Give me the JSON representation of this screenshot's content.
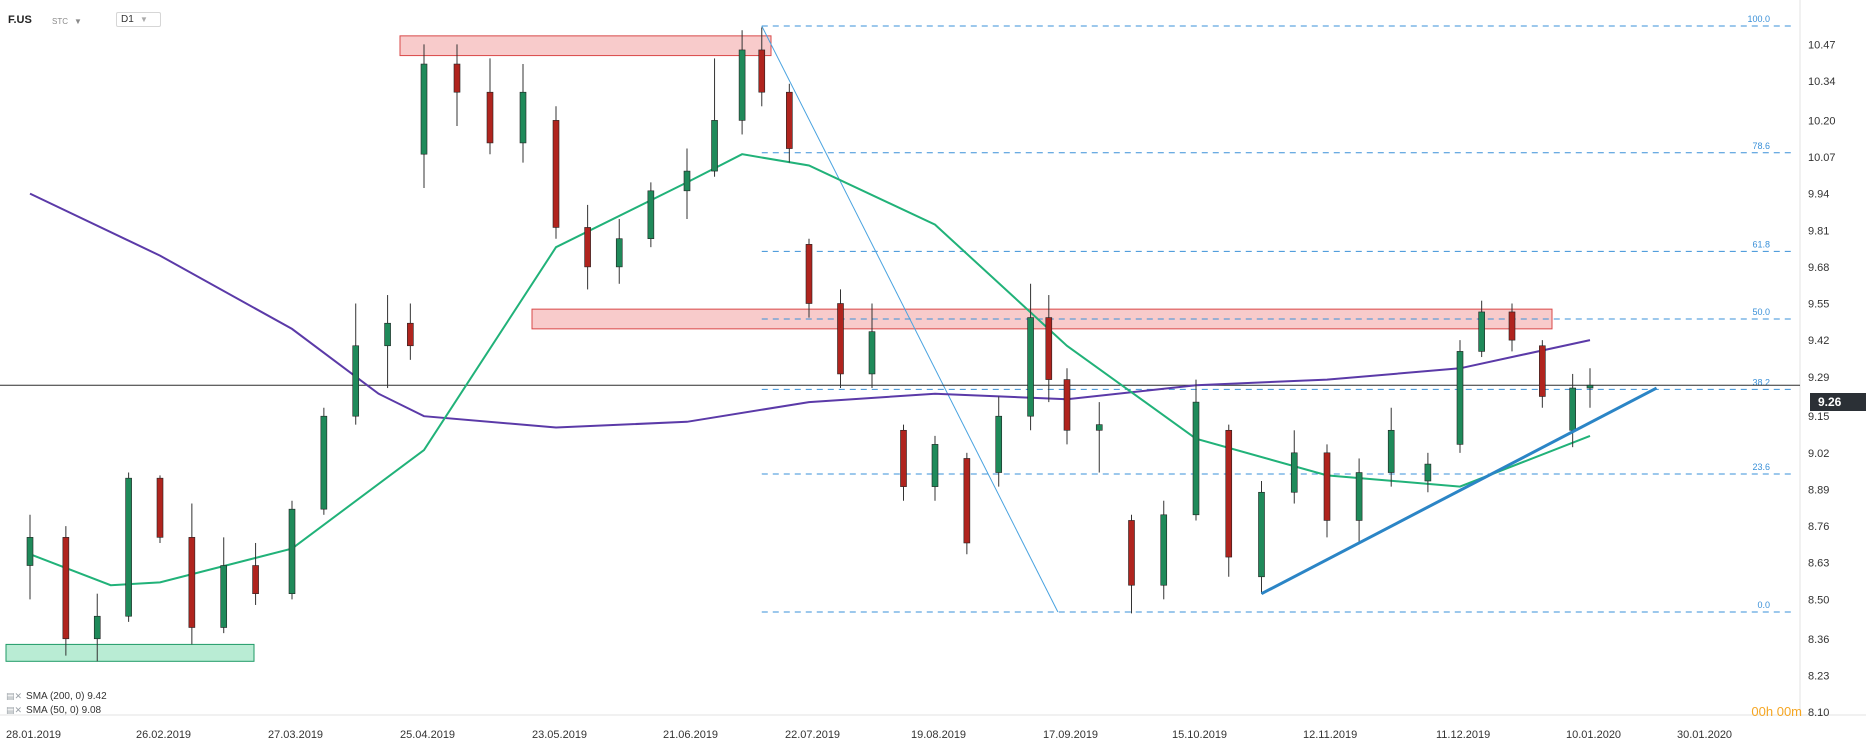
{
  "header": {
    "symbol": "F.US",
    "source": "STC",
    "timeframe": "D1",
    "source_caret_icon": "caret-down-icon",
    "timeframe_caret_icon": "caret-down-icon"
  },
  "legend": [
    {
      "label": "SMA (200, 0)",
      "value": "9.42",
      "icon": "indicator-settings-icon"
    },
    {
      "label": "SMA (50, 0)",
      "value": "9.08",
      "icon": "indicator-settings-icon"
    }
  ],
  "timer": "00h 00m",
  "current_price": "9.26",
  "chart_data": {
    "type": "candlestick",
    "title": "",
    "ylim": [
      8.1,
      10.56
    ],
    "y_ticks": [
      10.47,
      10.34,
      10.2,
      10.07,
      9.94,
      9.81,
      9.68,
      9.55,
      9.42,
      9.29,
      9.15,
      9.02,
      8.89,
      8.76,
      8.63,
      8.5,
      8.36,
      8.23,
      8.1
    ],
    "x_ticks": [
      "28.01.2019",
      "26.02.2019",
      "27.03.2019",
      "25.04.2019",
      "23.05.2019",
      "21.06.2019",
      "22.07.2019",
      "19.08.2019",
      "17.09.2019",
      "15.10.2019",
      "12.11.2019",
      "11.12.2019",
      "10.01.2020",
      "30.01.2020"
    ],
    "colors": {
      "up": "#1f8a5a",
      "down": "#b0241e",
      "sma200": "#5b3aa8",
      "sma50": "#21b279",
      "trend": "#2b85c6",
      "fib": "#3a90d8",
      "zone_red": "#f2a0a0",
      "zone_green": "#7fdcb0",
      "price_line": "#2f2f2f"
    },
    "fibonacci": [
      {
        "level": "100.0",
        "price": 10.535
      },
      {
        "level": "78.6",
        "price": 10.085
      },
      {
        "level": "61.8",
        "price": 9.735
      },
      {
        "level": "50.0",
        "price": 9.495
      },
      {
        "level": "38.2",
        "price": 9.245
      },
      {
        "level": "23.6",
        "price": 8.945
      },
      {
        "level": "0.0",
        "price": 8.455
      }
    ],
    "zones": [
      {
        "name": "resistance-zone-top",
        "from": "25.04.2019",
        "to": "22.07.2019",
        "y_low": 10.43,
        "y_high": 10.5,
        "color": "red"
      },
      {
        "name": "resistance-zone-middle",
        "from": "23.05.2019",
        "to": "10.01.2020",
        "y_low": 9.46,
        "y_high": 9.53,
        "color": "red"
      },
      {
        "name": "support-zone",
        "from": "28.01.2019",
        "to": "27.03.2019",
        "y_low": 8.28,
        "y_high": 8.34,
        "color": "green"
      }
    ],
    "current_price": 9.26,
    "trendline": {
      "from": {
        "x": "29.10.2019",
        "y": 8.52
      },
      "to": {
        "x": "22.01.2020",
        "y": 9.25
      }
    },
    "fib_diagonal": {
      "from": {
        "x": "10.07.2019",
        "y": 10.535
      },
      "to": {
        "x": "15.09.2019",
        "y": 8.455
      }
    },
    "sma200": [
      {
        "x": "28.01.2019",
        "y": 9.94
      },
      {
        "x": "26.02.2019",
        "y": 9.72
      },
      {
        "x": "27.03.2019",
        "y": 9.46
      },
      {
        "x": "15.04.2019",
        "y": 9.23
      },
      {
        "x": "25.04.2019",
        "y": 9.15
      },
      {
        "x": "23.05.2019",
        "y": 9.11
      },
      {
        "x": "21.06.2019",
        "y": 9.13
      },
      {
        "x": "22.07.2019",
        "y": 9.2
      },
      {
        "x": "19.08.2019",
        "y": 9.23
      },
      {
        "x": "17.09.2019",
        "y": 9.21
      },
      {
        "x": "15.10.2019",
        "y": 9.26
      },
      {
        "x": "12.11.2019",
        "y": 9.28
      },
      {
        "x": "11.12.2019",
        "y": 9.32
      },
      {
        "x": "10.01.2020",
        "y": 9.42
      }
    ],
    "sma50": [
      {
        "x": "28.01.2019",
        "y": 8.66
      },
      {
        "x": "15.02.2019",
        "y": 8.55
      },
      {
        "x": "26.02.2019",
        "y": 8.56
      },
      {
        "x": "27.03.2019",
        "y": 8.68
      },
      {
        "x": "25.04.2019",
        "y": 9.03
      },
      {
        "x": "23.05.2019",
        "y": 9.75
      },
      {
        "x": "21.06.2019",
        "y": 9.98
      },
      {
        "x": "05.07.2019",
        "y": 10.08
      },
      {
        "x": "22.07.2019",
        "y": 10.04
      },
      {
        "x": "19.08.2019",
        "y": 9.83
      },
      {
        "x": "17.09.2019",
        "y": 9.4
      },
      {
        "x": "15.10.2019",
        "y": 9.07
      },
      {
        "x": "12.11.2019",
        "y": 8.94
      },
      {
        "x": "11.12.2019",
        "y": 8.9
      },
      {
        "x": "10.01.2020",
        "y": 9.08
      }
    ],
    "candles": [
      {
        "x": "28.01.2019",
        "o": 8.62,
        "h": 8.8,
        "l": 8.5,
        "c": 8.72
      },
      {
        "x": "05.02.2019",
        "o": 8.72,
        "h": 8.76,
        "l": 8.3,
        "c": 8.36
      },
      {
        "x": "12.02.2019",
        "o": 8.36,
        "h": 8.52,
        "l": 8.28,
        "c": 8.44
      },
      {
        "x": "19.02.2019",
        "o": 8.44,
        "h": 8.95,
        "l": 8.42,
        "c": 8.93
      },
      {
        "x": "26.02.2019",
        "o": 8.93,
        "h": 8.94,
        "l": 8.7,
        "c": 8.72
      },
      {
        "x": "05.03.2019",
        "o": 8.72,
        "h": 8.84,
        "l": 8.34,
        "c": 8.4
      },
      {
        "x": "12.03.2019",
        "o": 8.4,
        "h": 8.72,
        "l": 8.38,
        "c": 8.62
      },
      {
        "x": "19.03.2019",
        "o": 8.62,
        "h": 8.7,
        "l": 8.48,
        "c": 8.52
      },
      {
        "x": "27.03.2019",
        "o": 8.52,
        "h": 8.85,
        "l": 8.5,
        "c": 8.82
      },
      {
        "x": "03.04.2019",
        "o": 8.82,
        "h": 9.18,
        "l": 8.8,
        "c": 9.15
      },
      {
        "x": "10.04.2019",
        "o": 9.15,
        "h": 9.55,
        "l": 9.12,
        "c": 9.4
      },
      {
        "x": "17.04.2019",
        "o": 9.4,
        "h": 9.58,
        "l": 9.25,
        "c": 9.48
      },
      {
        "x": "22.04.2019",
        "o": 9.48,
        "h": 9.55,
        "l": 9.35,
        "c": 9.4
      },
      {
        "x": "25.04.2019",
        "o": 10.08,
        "h": 10.47,
        "l": 9.96,
        "c": 10.4
      },
      {
        "x": "02.05.2019",
        "o": 10.4,
        "h": 10.47,
        "l": 10.18,
        "c": 10.3
      },
      {
        "x": "09.05.2019",
        "o": 10.3,
        "h": 10.42,
        "l": 10.08,
        "c": 10.12
      },
      {
        "x": "16.05.2019",
        "o": 10.12,
        "h": 10.4,
        "l": 10.05,
        "c": 10.3
      },
      {
        "x": "23.05.2019",
        "o": 10.2,
        "h": 10.25,
        "l": 9.78,
        "c": 9.82
      },
      {
        "x": "30.05.2019",
        "o": 9.82,
        "h": 9.9,
        "l": 9.6,
        "c": 9.68
      },
      {
        "x": "06.06.2019",
        "o": 9.68,
        "h": 9.85,
        "l": 9.62,
        "c": 9.78
      },
      {
        "x": "13.06.2019",
        "o": 9.78,
        "h": 9.98,
        "l": 9.75,
        "c": 9.95
      },
      {
        "x": "21.06.2019",
        "o": 9.95,
        "h": 10.1,
        "l": 9.85,
        "c": 10.02
      },
      {
        "x": "28.06.2019",
        "o": 10.02,
        "h": 10.42,
        "l": 10.0,
        "c": 10.2
      },
      {
        "x": "05.07.2019",
        "o": 10.2,
        "h": 10.52,
        "l": 10.15,
        "c": 10.45
      },
      {
        "x": "10.07.2019",
        "o": 10.45,
        "h": 10.53,
        "l": 10.25,
        "c": 10.3
      },
      {
        "x": "17.07.2019",
        "o": 10.3,
        "h": 10.33,
        "l": 10.05,
        "c": 10.1
      },
      {
        "x": "22.07.2019",
        "o": 9.76,
        "h": 9.78,
        "l": 9.5,
        "c": 9.55
      },
      {
        "x": "29.07.2019",
        "o": 9.55,
        "h": 9.6,
        "l": 9.25,
        "c": 9.3
      },
      {
        "x": "05.08.2019",
        "o": 9.3,
        "h": 9.55,
        "l": 9.25,
        "c": 9.45
      },
      {
        "x": "12.08.2019",
        "o": 9.1,
        "h": 9.12,
        "l": 8.85,
        "c": 8.9
      },
      {
        "x": "19.08.2019",
        "o": 8.9,
        "h": 9.08,
        "l": 8.85,
        "c": 9.05
      },
      {
        "x": "26.08.2019",
        "o": 9.0,
        "h": 9.02,
        "l": 8.66,
        "c": 8.7
      },
      {
        "x": "02.09.2019",
        "o": 8.95,
        "h": 9.22,
        "l": 8.9,
        "c": 9.15
      },
      {
        "x": "09.09.2019",
        "o": 9.15,
        "h": 9.62,
        "l": 9.1,
        "c": 9.5
      },
      {
        "x": "13.09.2019",
        "o": 9.5,
        "h": 9.58,
        "l": 9.2,
        "c": 9.28
      },
      {
        "x": "17.09.2019",
        "o": 9.28,
        "h": 9.32,
        "l": 9.05,
        "c": 9.1
      },
      {
        "x": "24.09.2019",
        "o": 9.1,
        "h": 9.2,
        "l": 8.95,
        "c": 9.12
      },
      {
        "x": "01.10.2019",
        "o": 8.78,
        "h": 8.8,
        "l": 8.45,
        "c": 8.55
      },
      {
        "x": "08.10.2019",
        "o": 8.55,
        "h": 8.85,
        "l": 8.5,
        "c": 8.8
      },
      {
        "x": "15.10.2019",
        "o": 8.8,
        "h": 9.28,
        "l": 8.78,
        "c": 9.2
      },
      {
        "x": "22.10.2019",
        "o": 9.1,
        "h": 9.12,
        "l": 8.58,
        "c": 8.65
      },
      {
        "x": "29.10.2019",
        "o": 8.58,
        "h": 8.92,
        "l": 8.52,
        "c": 8.88
      },
      {
        "x": "05.11.2019",
        "o": 8.88,
        "h": 9.1,
        "l": 8.84,
        "c": 9.02
      },
      {
        "x": "12.11.2019",
        "o": 9.02,
        "h": 9.05,
        "l": 8.72,
        "c": 8.78
      },
      {
        "x": "19.11.2019",
        "o": 8.78,
        "h": 9.0,
        "l": 8.7,
        "c": 8.95
      },
      {
        "x": "26.11.2019",
        "o": 8.95,
        "h": 9.18,
        "l": 8.9,
        "c": 9.1
      },
      {
        "x": "04.12.2019",
        "o": 8.92,
        "h": 9.02,
        "l": 8.88,
        "c": 8.98
      },
      {
        "x": "11.12.2019",
        "o": 9.05,
        "h": 9.42,
        "l": 9.02,
        "c": 9.38
      },
      {
        "x": "16.12.2019",
        "o": 9.38,
        "h": 9.56,
        "l": 9.36,
        "c": 9.52
      },
      {
        "x": "23.12.2019",
        "o": 9.52,
        "h": 9.55,
        "l": 9.38,
        "c": 9.42
      },
      {
        "x": "30.12.2019",
        "o": 9.4,
        "h": 9.42,
        "l": 9.18,
        "c": 9.22
      },
      {
        "x": "06.01.2020",
        "o": 9.1,
        "h": 9.3,
        "l": 9.04,
        "c": 9.25
      },
      {
        "x": "10.01.2020",
        "o": 9.25,
        "h": 9.32,
        "l": 9.18,
        "c": 9.26
      }
    ]
  }
}
